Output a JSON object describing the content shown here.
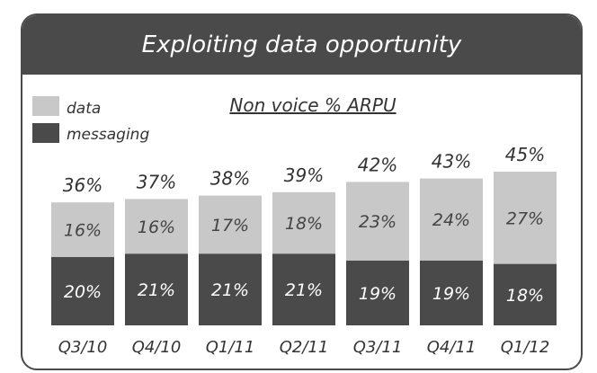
{
  "colors": {
    "data": "#c8c8c8",
    "messaging": "#4a4a4a",
    "banner": "#4a4a4a",
    "text": "#333333"
  },
  "banner_title": "Exploiting data opportunity",
  "chart_data": {
    "type": "bar",
    "stacked": true,
    "title": "Non voice % ARPU",
    "categories": [
      "Q3/10",
      "Q4/10",
      "Q1/11",
      "Q2/11",
      "Q3/11",
      "Q4/11",
      "Q1/12"
    ],
    "series": [
      {
        "name": "messaging",
        "values": [
          20,
          21,
          21,
          21,
          19,
          19,
          18
        ],
        "labels": [
          "20%",
          "21%",
          "21%",
          "21%",
          "19%",
          "19%",
          "18%"
        ]
      },
      {
        "name": "data",
        "values": [
          16,
          16,
          17,
          18,
          23,
          24,
          27
        ],
        "labels": [
          "16%",
          "16%",
          "17%",
          "18%",
          "23%",
          "24%",
          "27%"
        ]
      }
    ],
    "totals": [
      36,
      37,
      38,
      39,
      42,
      43,
      45
    ],
    "total_labels": [
      "36%",
      "37%",
      "38%",
      "39%",
      "42%",
      "43%",
      "45%"
    ],
    "legend": [
      {
        "name": "data",
        "color": "#c8c8c8"
      },
      {
        "name": "messaging",
        "color": "#4a4a4a"
      }
    ],
    "legend_position": "top-left",
    "ylim": [
      0,
      45
    ]
  }
}
